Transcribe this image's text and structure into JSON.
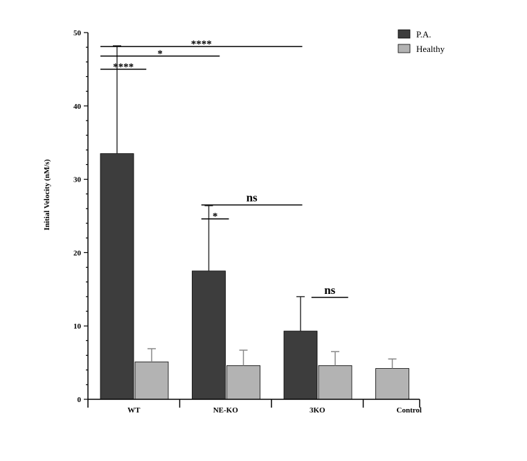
{
  "chart_data": {
    "type": "bar",
    "title": "",
    "xlabel": "",
    "ylabel": "Initial Velocity (nM/s)",
    "ylim": [
      0,
      50
    ],
    "yticks": [
      0,
      10,
      20,
      30,
      40,
      50
    ],
    "categories": [
      "WT",
      "NE-KO",
      "3KO",
      "Control"
    ],
    "legend_position": "top-right",
    "series": [
      {
        "name": "P.A.",
        "color": "#3d3d3d",
        "values": [
          33.5,
          17.5,
          9.3,
          null
        ],
        "errors": [
          14.7,
          8.9,
          4.7,
          null
        ]
      },
      {
        "name": "Healthy",
        "color": "#b3b3b3",
        "values": [
          5.1,
          4.6,
          4.6,
          4.2
        ],
        "errors": [
          1.8,
          2.1,
          1.9,
          1.3
        ]
      }
    ],
    "annotations": [
      {
        "label": "****",
        "y": 45.0,
        "from": 0,
        "to": 0.5
      },
      {
        "label": "*",
        "y": 46.8,
        "from": 0,
        "to": 1.3
      },
      {
        "label": "****",
        "y": 48.1,
        "from": 0,
        "to": 2.2
      },
      {
        "label": "*",
        "y": 24.6,
        "from": 1.1,
        "to": 1.4
      },
      {
        "label": "ns",
        "y": 26.5,
        "from": 1.1,
        "to": 2.2
      },
      {
        "label": "ns",
        "y": 13.9,
        "from": 2.3,
        "to": 2.7
      }
    ]
  }
}
